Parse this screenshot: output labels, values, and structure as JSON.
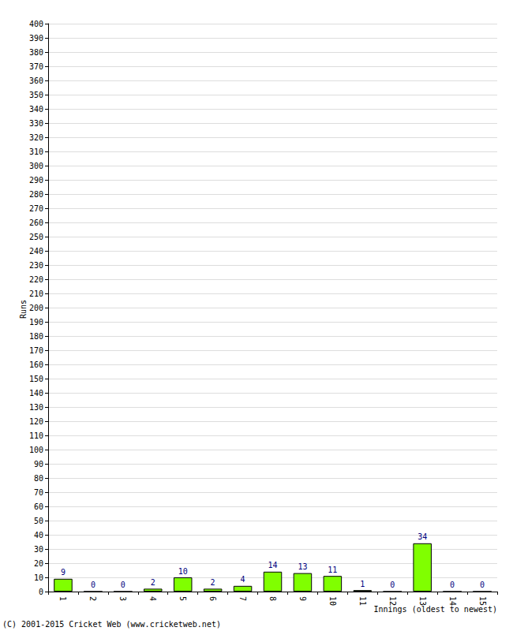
{
  "chart_data": {
    "type": "bar",
    "categories": [
      "1",
      "2",
      "3",
      "4",
      "5",
      "6",
      "7",
      "8",
      "9",
      "10",
      "11",
      "12",
      "13",
      "14",
      "15"
    ],
    "values": [
      9,
      0,
      0,
      2,
      10,
      2,
      4,
      14,
      13,
      11,
      1,
      0,
      34,
      0,
      0
    ],
    "color": "#80ff00",
    "x_label": "Innings (oldest to newest)",
    "y_label": "Runs",
    "annotation": "(C) 2001-2015 Cricket Web (www.cricketweb.net)",
    "ylim": [
      0,
      400
    ],
    "yticks": [
      0,
      10,
      20,
      30,
      40,
      50,
      60,
      70,
      80,
      90,
      100,
      110,
      120,
      130,
      140,
      150,
      160,
      170,
      180,
      190,
      200,
      210,
      220,
      230,
      240,
      250,
      260,
      270,
      280,
      290,
      300,
      310,
      320,
      330,
      340,
      350,
      360,
      370,
      380,
      390,
      400
    ],
    "grid": true,
    "data_labels": true
  }
}
